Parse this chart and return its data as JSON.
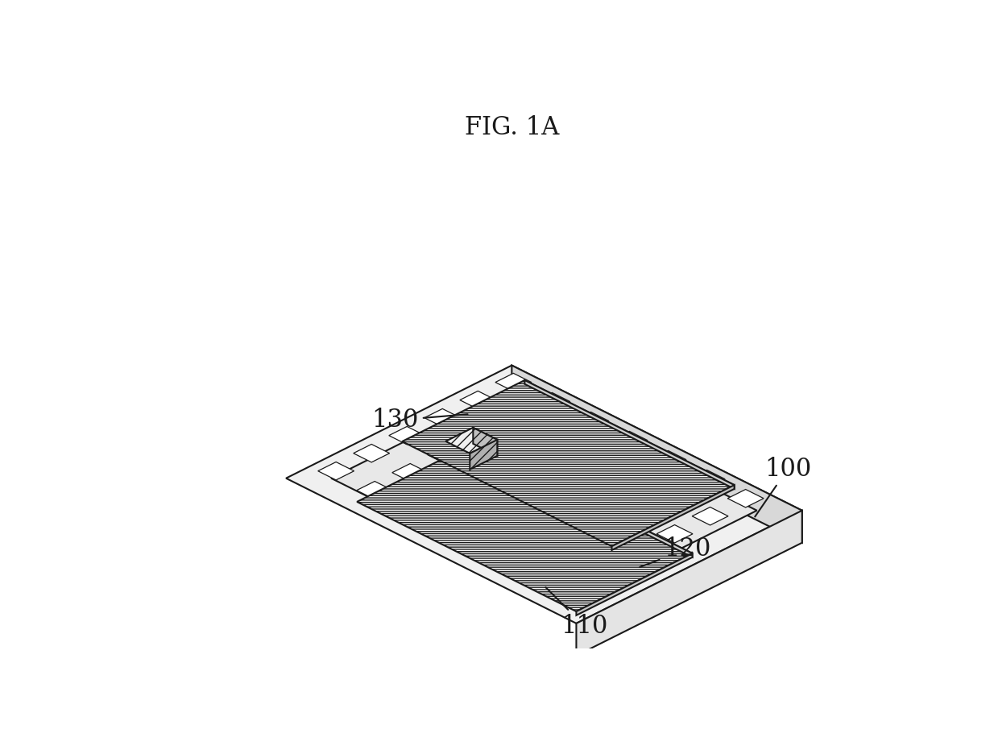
{
  "title": "FIG. 1A",
  "title_fontsize": 22,
  "bg_color": "#ffffff",
  "line_color": "#1a1a1a",
  "line_width": 1.5,
  "thin_line": 0.9,
  "label_fontsize": 22,
  "substrate_top_color": "#f0f0f0",
  "substrate_front_color": "#d8d8d8",
  "substrate_right_color": "#e4e4e4",
  "inner_border_color": "#e8e8e8",
  "layer_face_color": "#f8f8f8",
  "layer_edge_color": "#d0d0d0",
  "chip_top_color": "#f0f0f0",
  "chip_front_color": "#c0c0c0",
  "chip_right_color": "#b0b0b0",
  "hole_fill": "#ffffff"
}
